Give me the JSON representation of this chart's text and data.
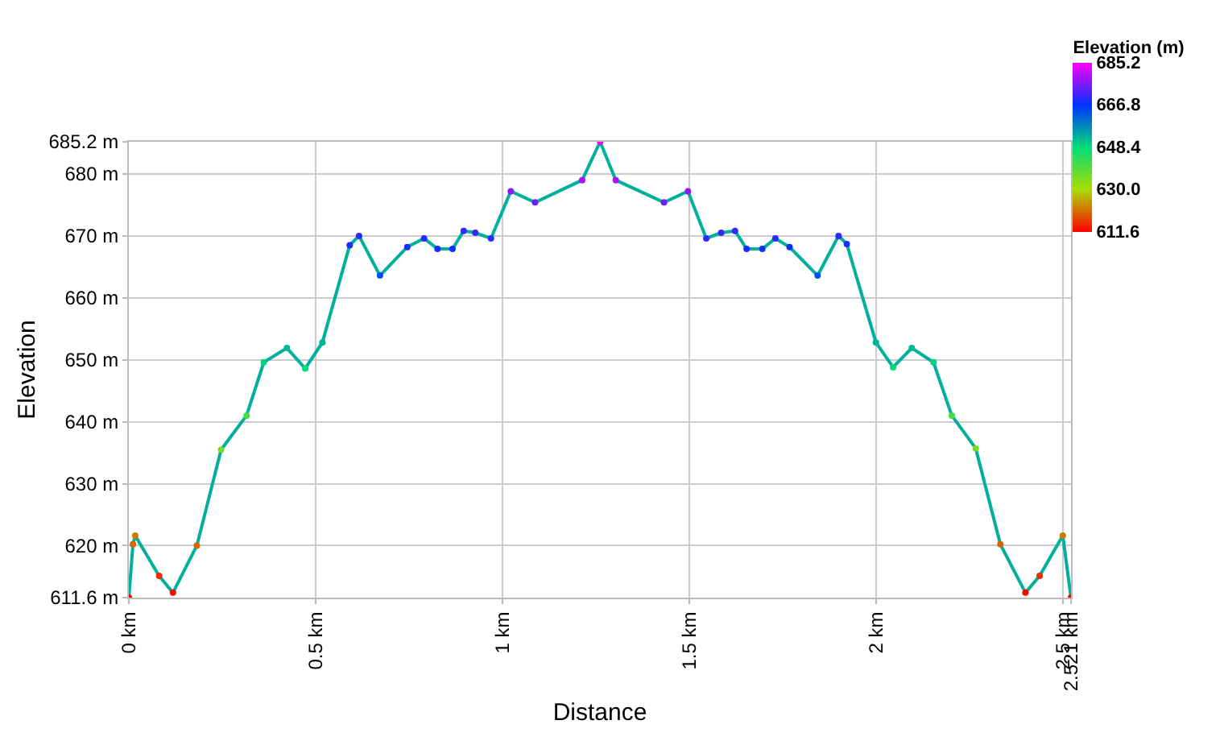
{
  "chart_data": {
    "type": "line",
    "xlabel": "Distance",
    "ylabel": "Elevation",
    "clabel": "Elevation (m)",
    "x": [
      0,
      0.011,
      0.017,
      0.081,
      0.118,
      0.182,
      0.247,
      0.315,
      0.361,
      0.423,
      0.472,
      0.518,
      0.591,
      0.616,
      0.672,
      0.745,
      0.79,
      0.826,
      0.866,
      0.896,
      0.927,
      0.969,
      1.022,
      1.087,
      1.213,
      1.261,
      1.303,
      1.432,
      1.496,
      1.545,
      1.585,
      1.622,
      1.653,
      1.695,
      1.73,
      1.768,
      1.843,
      1.899,
      1.921,
      1.999,
      2.045,
      2.095,
      2.153,
      2.202,
      2.266,
      2.332,
      2.399,
      2.437,
      2.499,
      2.521
    ],
    "series": [
      {
        "values": [
          611.6,
          620.2,
          621.6,
          615.1,
          612.4,
          620.0,
          635.5,
          641.0,
          649.6,
          651.9,
          648.6,
          652.8,
          668.5,
          670.0,
          663.6,
          668.2,
          669.6,
          667.9,
          667.9,
          670.8,
          670.5,
          669.6,
          677.2,
          675.4,
          679.0,
          685.2,
          679.0,
          675.4,
          677.2,
          669.6,
          670.5,
          670.8,
          667.9,
          667.9,
          669.6,
          668.2,
          663.6,
          670.0,
          668.7,
          652.8,
          648.8,
          651.9,
          649.6,
          641.0,
          635.7,
          620.2,
          612.4,
          615.1,
          621.6,
          611.6
        ]
      }
    ],
    "xlim": [
      0,
      2.521
    ],
    "xticks": [
      {
        "value": 0,
        "label": "0 km"
      },
      {
        "value": 0.5,
        "label": "0.5 km"
      },
      {
        "value": 1,
        "label": "1 km"
      },
      {
        "value": 1.5,
        "label": "1.5 km"
      },
      {
        "value": 2,
        "label": "2 km"
      },
      {
        "value": 2.5,
        "label": "2.5 km"
      },
      {
        "value": 2.521,
        "label": "2.521 km"
      }
    ],
    "ylim": [
      611.6,
      685.2
    ],
    "yticks": [
      {
        "value": 611.6,
        "label": "611.6 m"
      },
      {
        "value": 620,
        "label": "620 m"
      },
      {
        "value": 630,
        "label": "630 m"
      },
      {
        "value": 640,
        "label": "640 m"
      },
      {
        "value": 650,
        "label": "650 m"
      },
      {
        "value": 660,
        "label": "660 m"
      },
      {
        "value": 670,
        "label": "670 m"
      },
      {
        "value": 680,
        "label": "680 m"
      },
      {
        "value": 685.2,
        "label": "685.2 m"
      }
    ],
    "clim": [
      611.6,
      685.2
    ],
    "cticks": [
      {
        "value": 685.2,
        "label": "685.2"
      },
      {
        "value": 666.8,
        "label": "666.8"
      },
      {
        "value": 648.4,
        "label": "648.4"
      },
      {
        "value": 630.0,
        "label": "630.0"
      },
      {
        "value": 611.6,
        "label": "611.6"
      }
    ],
    "colors": [
      "#ff00ff",
      "#0033ff",
      "#00dd77",
      "#aadd00",
      "#ff0000"
    ],
    "grid": true,
    "marker": "circle",
    "line_style": "solid"
  }
}
